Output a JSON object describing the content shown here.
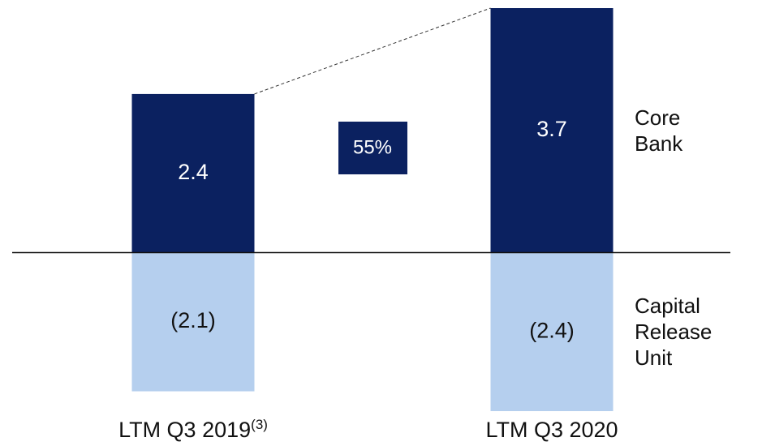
{
  "chart_data": {
    "type": "bar",
    "categories": [
      "LTM Q3 2019",
      "LTM Q3 2020"
    ],
    "category_superscripts": [
      "(3)",
      null
    ],
    "series": [
      {
        "name": "Core Bank",
        "color": "#0b2160",
        "label_color": "#ffffff",
        "values": [
          2.4,
          3.7
        ],
        "value_labels": [
          "2.4",
          "3.7"
        ]
      },
      {
        "name": "Capital Release Unit",
        "color": "#b5cfee",
        "label_color": "#111111",
        "values": [
          -2.1,
          -2.4
        ],
        "value_labels": [
          "(2.1)",
          "(2.4)"
        ]
      }
    ],
    "annotation": {
      "text": "55%",
      "color": "#0b2160"
    },
    "ylim": [
      -2.4,
      3.7
    ],
    "grid": false
  }
}
